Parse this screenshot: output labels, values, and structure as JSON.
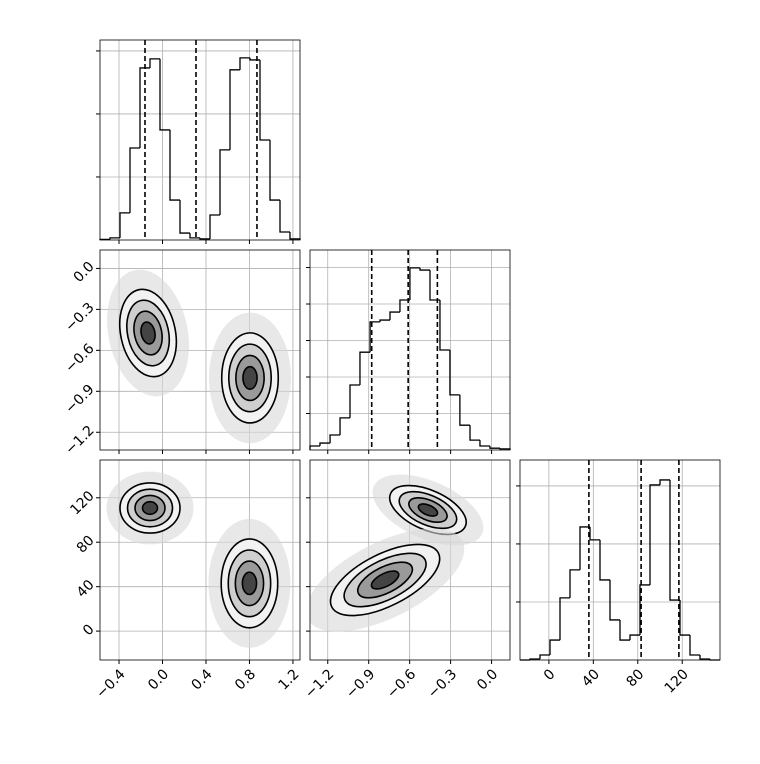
{
  "chart_data": {
    "type": "corner",
    "color": "#000000",
    "grid": true,
    "params": [
      {
        "lim": [
          -0.575,
          1.265
        ],
        "ticks": [
          {
            "value": -0.4,
            "label": "−0.4"
          },
          {
            "value": 0,
            "label": "0.0"
          },
          0.4,
          0.8,
          1.2
        ]
      },
      {
        "lim": [
          -1.33,
          0.135
        ],
        "ticks": [
          {
            "value": -1.2,
            "label": "−1.2"
          },
          {
            "value": -0.9,
            "label": "−0.9"
          },
          {
            "value": -0.6,
            "label": "−0.6"
          },
          {
            "value": -0.3,
            "label": "−0.3"
          },
          {
            "value": 0,
            "label": "0.0"
          }
        ]
      },
      {
        "lim": [
          -26,
          154
        ],
        "ticks": [
          0,
          40,
          80,
          120
        ]
      }
    ],
    "histograms": [
      {
        "bins": [
          -0.575,
          -0.483,
          -0.391,
          -0.299,
          -0.207,
          -0.115,
          -0.023,
          0.069,
          0.161,
          0.253,
          0.345,
          0.437,
          0.529,
          0.621,
          0.713,
          0.805,
          0.897,
          0.989,
          1.081,
          1.173,
          1.265
        ],
        "counts": [
          3,
          10,
          129,
          438,
          819,
          862,
          524,
          190,
          33,
          10,
          5,
          119,
          429,
          810,
          867,
          857,
          476,
          190,
          38,
          5
        ],
        "ylim": [
          0,
          952
        ],
        "yticks": [
          300,
          600,
          900
        ],
        "quantiles": [
          -0.161,
          0.308,
          0.869
        ]
      },
      {
        "bins": [
          -1.33,
          -1.257,
          -1.183,
          -1.11,
          -1.037,
          -0.964,
          -0.89,
          -0.817,
          -0.744,
          -0.671,
          -0.598,
          -0.524,
          -0.451,
          -0.378,
          -0.305,
          -0.232,
          -0.158,
          -0.085,
          -0.012,
          0.061,
          0.135
        ],
        "counts": [
          11,
          19,
          41,
          88,
          178,
          268,
          351,
          356,
          378,
          411,
          499,
          493,
          411,
          274,
          151,
          68,
          27,
          11,
          5,
          3
        ],
        "ylim": [
          0,
          548
        ],
        "yticks": [
          100,
          200,
          300,
          400,
          500
        ],
        "quantiles": [
          -0.878,
          -0.611,
          -0.397
        ]
      },
      {
        "bins": [
          -26,
          -17,
          -8,
          1,
          10,
          19,
          28,
          37,
          46,
          55,
          64,
          73,
          82,
          91,
          100,
          109,
          118,
          127,
          136,
          145,
          154
        ],
        "counts": [
          0,
          5,
          26,
          103,
          321,
          466,
          688,
          621,
          414,
          207,
          103,
          129,
          388,
          905,
          931,
          310,
          129,
          26,
          5,
          0
        ],
        "ylim": [
          0,
          1034
        ],
        "yticks": [
          300,
          600,
          900
        ],
        "quantiles": [
          36,
          83,
          117
        ]
      }
    ],
    "pairs": [
      {
        "blobs": [
          {
            "center": [
              -0.133,
              -0.473
            ],
            "sd": [
              0.13,
              0.16
            ],
            "rho": -0.2
          },
          {
            "center": [
              0.805,
              -0.802
            ],
            "sd": [
              0.13,
              0.165
            ],
            "rho": 0
          }
        ]
      },
      {
        "blobs": [
          {
            "center": [
              -0.115,
              110.8
            ],
            "sd": [
              0.138,
              11.3
            ],
            "rho": 0
          },
          {
            "center": [
              0.8,
              43
            ],
            "sd": [
              0.13,
              20
            ],
            "rho": 0
          }
        ]
      },
      {
        "blobs": [
          {
            "center": [
              -0.466,
              109
            ],
            "sd": [
              0.14,
              11
            ],
            "rho": -0.5
          },
          {
            "center": [
              -0.78,
              46
            ],
            "sd": [
              0.2,
              16
            ],
            "rho": 0.6
          }
        ]
      }
    ]
  }
}
